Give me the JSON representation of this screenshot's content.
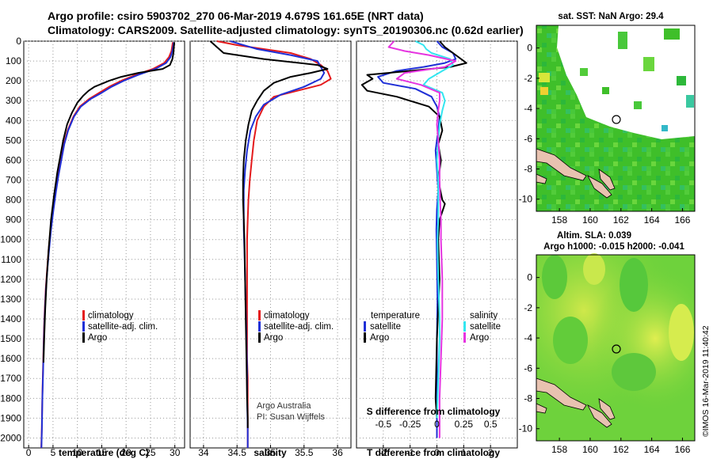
{
  "title": {
    "line1": "Argo profile: csiro 5903702_270 06-Mar-2019 4.679S 161.65E (NRT data)",
    "line2": "Climatology: CARS2009. Satellite-adjusted climatology: synTS_20190306.nc (0.62d earlier)"
  },
  "credit": {
    "line1": "Argo Australia",
    "line2": "PI: Susan Wijffels",
    "stamp": "©IMOS 16-Mar-2019 11:40:42"
  },
  "colors": {
    "climatology": "#e41a1c",
    "satellite": "#1f2fd6",
    "argo": "#000000",
    "sal_satellite": "#33e6f0",
    "sal_argo": "#e634e0"
  },
  "y_axis": {
    "label": "",
    "range": [
      0,
      2050
    ],
    "ticks": [
      0,
      100,
      200,
      300,
      400,
      500,
      600,
      700,
      800,
      900,
      1000,
      1100,
      1200,
      1300,
      1400,
      1500,
      1600,
      1700,
      1800,
      1900,
      2000
    ]
  },
  "chart_data": [
    {
      "type": "line",
      "id": "temperature",
      "xlabel": "temperature (deg C)",
      "xlim": [
        -1,
        32
      ],
      "xticks": [
        0,
        5,
        10,
        15,
        20,
        25,
        30
      ],
      "ylim": [
        2050,
        0
      ],
      "legend": [
        "climatology",
        "satellite-adj. clim.",
        "Argo"
      ],
      "series": [
        {
          "name": "climatology",
          "color": "#e41a1c",
          "x": [
            29.6,
            29.5,
            29.3,
            28.8,
            27.8,
            25.5,
            22,
            19,
            16.5,
            14.5,
            12.5,
            10.5,
            9.2,
            8,
            7.2,
            6.6,
            6,
            5.5,
            5,
            4.5,
            4.1,
            3.8,
            3.5,
            3.3,
            3.15,
            3.05,
            2.95,
            2.8,
            2.7,
            2.6
          ],
          "y": [
            5,
            20,
            50,
            80,
            110,
            140,
            170,
            200,
            230,
            260,
            290,
            330,
            380,
            450,
            520,
            600,
            680,
            760,
            850,
            950,
            1050,
            1150,
            1250,
            1350,
            1450,
            1550,
            1650,
            1800,
            1950,
            2050
          ]
        },
        {
          "name": "satellite-adj. clim.",
          "color": "#1f2fd6",
          "x": [
            29.8,
            29.7,
            29.5,
            29.1,
            28.2,
            26,
            22.5,
            19.5,
            17,
            15,
            12.8,
            10.7,
            9.3,
            8.1,
            7.3,
            6.7,
            6.1,
            5.6,
            5.1,
            4.6,
            4.2,
            3.85,
            3.55,
            3.35,
            3.2,
            3.08,
            2.98,
            2.82,
            2.72,
            2.62
          ],
          "y": [
            5,
            20,
            50,
            80,
            110,
            140,
            170,
            200,
            230,
            260,
            290,
            330,
            380,
            450,
            520,
            600,
            680,
            760,
            850,
            950,
            1050,
            1150,
            1250,
            1350,
            1450,
            1550,
            1650,
            1800,
            1950,
            2050
          ]
        },
        {
          "name": "Argo",
          "color": "#000000",
          "x": [
            29.9,
            29.8,
            29.7,
            29.5,
            29,
            27.5,
            25,
            22.5,
            19,
            16.5,
            15,
            13.5,
            12.3,
            11.2,
            10,
            8.9,
            7.9,
            7.1,
            6.5,
            5.9,
            5.2,
            4.6,
            4.1,
            3.7,
            3.4,
            3.2,
            3.05
          ],
          "y": [
            5,
            30,
            60,
            90,
            120,
            140,
            150,
            160,
            180,
            200,
            215,
            230,
            250,
            275,
            310,
            360,
            420,
            500,
            580,
            660,
            780,
            900,
            1050,
            1200,
            1350,
            1500,
            1620
          ]
        }
      ]
    },
    {
      "type": "line",
      "id": "salinity",
      "xlabel": "salinity",
      "xlim": [
        33.8,
        36.2
      ],
      "xticks": [
        34,
        34.5,
        35,
        35.5,
        36
      ],
      "ylim": [
        2050,
        0
      ],
      "legend": [
        "climatology",
        "satellite-adj. clim.",
        "Argo"
      ],
      "series": [
        {
          "name": "climatology",
          "color": "#e41a1c",
          "x": [
            34.2,
            34.5,
            34.9,
            35.3,
            35.6,
            35.75,
            35.85,
            35.9,
            35.75,
            35.4,
            35.05,
            34.9,
            34.8,
            34.75,
            34.72,
            34.69,
            34.67,
            34.66,
            34.65,
            34.65,
            34.65,
            34.65,
            34.65,
            34.66,
            34.66,
            34.66,
            34.66
          ],
          "y": [
            0,
            20,
            40,
            60,
            90,
            120,
            150,
            190,
            220,
            250,
            280,
            330,
            400,
            500,
            600,
            700,
            800,
            900,
            1000,
            1200,
            1400,
            1500,
            1600,
            1700,
            1800,
            1900,
            2050
          ]
        },
        {
          "name": "satellite-adj. clim.",
          "color": "#1f2fd6",
          "x": [
            34.4,
            34.55,
            34.8,
            35.3,
            35.7,
            35.75,
            35.8,
            35.75,
            35.5,
            35.15,
            34.9,
            34.78,
            34.7,
            34.65,
            34.62,
            34.6,
            34.6,
            34.6,
            34.61,
            34.62,
            34.63,
            34.64,
            34.65,
            34.65,
            34.66,
            34.66
          ],
          "y": [
            0,
            15,
            40,
            70,
            100,
            130,
            160,
            190,
            230,
            270,
            320,
            380,
            450,
            550,
            650,
            750,
            850,
            950,
            1050,
            1200,
            1350,
            1500,
            1650,
            1800,
            1950,
            2050
          ]
        },
        {
          "name": "Argo",
          "color": "#000000",
          "x": [
            34.1,
            34.2,
            34.3,
            34.9,
            35.7,
            35.85,
            35.6,
            35.3,
            35.05,
            34.9,
            34.8,
            34.72,
            34.67,
            34.63,
            34.6,
            34.59,
            34.59,
            34.6,
            34.61,
            34.62,
            34.63,
            34.64,
            34.65,
            34.66,
            34.66
          ],
          "y": [
            0,
            30,
            60,
            90,
            120,
            140,
            160,
            180,
            210,
            250,
            300,
            350,
            420,
            500,
            600,
            700,
            800,
            900,
            1000,
            1200,
            1400,
            1600,
            1800,
            1900,
            1950
          ]
        }
      ]
    },
    {
      "type": "line",
      "id": "difference",
      "xlabel": "T difference from climatology",
      "xlabel_top": "S difference from climatology",
      "xlim": [
        -3,
        3
      ],
      "xticks": [
        -2,
        -1,
        0,
        1,
        2
      ],
      "xticks_top": [
        "-0.5",
        "-0.25",
        "0",
        "0.25",
        "0.5"
      ],
      "ylim": [
        2050,
        0
      ],
      "legend_temperature": {
        "title": "temperature",
        "items": [
          "satellite",
          "Argo"
        ]
      },
      "legend_salinity": {
        "title": "salinity",
        "items": [
          "satellite",
          "Argo"
        ]
      },
      "series": [
        {
          "name": "satellite",
          "group": "temperature",
          "color": "#1f2fd6",
          "x": [
            0,
            0.2,
            0.6,
            0.7,
            0.3,
            -0.5,
            -1.5,
            -2.2,
            -2.0,
            -0.8,
            -0.2,
            0,
            0.1,
            0.05,
            -0.05,
            0,
            0.05,
            0,
            -0.02,
            0,
            0.02,
            0,
            0,
            0,
            0
          ],
          "y": [
            0,
            30,
            60,
            90,
            110,
            130,
            150,
            180,
            210,
            240,
            280,
            330,
            380,
            450,
            550,
            650,
            750,
            850,
            950,
            1100,
            1300,
            1500,
            1700,
            1850,
            2000
          ]
        },
        {
          "name": "Argo",
          "group": "temperature",
          "color": "#000000",
          "x": [
            0.1,
            0.3,
            0.6,
            1.1,
            0.5,
            -1.0,
            -2.6,
            -2.4,
            -2.8,
            -2.6,
            -1.5,
            -0.3,
            0.1,
            0.2,
            0.05,
            0.15,
            0.05,
            0.2,
            0.3,
            0.1,
            0.05,
            0.1,
            0,
            -0.05,
            0
          ],
          "y": [
            0,
            30,
            60,
            110,
            130,
            150,
            170,
            190,
            220,
            250,
            280,
            330,
            380,
            450,
            520,
            600,
            700,
            800,
            820,
            900,
            1000,
            1200,
            1500,
            1800,
            1900
          ]
        },
        {
          "name": "satellite",
          "group": "salinity",
          "color": "#33e6f0",
          "x": [
            -0.8,
            -0.5,
            -0.4,
            -0.2,
            0.5,
            0.6,
            0.2,
            -0.3,
            -0.5,
            0.2,
            0.3,
            0.2,
            0.1,
            0.05,
            0.0,
            0.05,
            0.05,
            0.05,
            0.02,
            0.05,
            0.1,
            0.1,
            0.05,
            0
          ],
          "y": [
            0,
            20,
            40,
            60,
            90,
            120,
            150,
            190,
            220,
            260,
            300,
            350,
            420,
            500,
            600,
            700,
            800,
            900,
            1000,
            1200,
            1400,
            1500,
            1700,
            1900
          ]
        },
        {
          "name": "Argo",
          "group": "salinity",
          "color": "#e634e0",
          "x": [
            -1.6,
            -1.8,
            -1.2,
            -0.3,
            0.7,
            0.3,
            -1.2,
            -1.5,
            -0.6,
            0.1,
            0.1,
            0.05,
            0,
            0.05,
            0.1,
            0.1,
            0.12,
            0.15,
            0.15,
            0.2,
            0.2,
            0.15,
            0.1,
            0.1
          ],
          "y": [
            0,
            30,
            50,
            70,
            100,
            130,
            160,
            190,
            220,
            260,
            300,
            350,
            420,
            500,
            600,
            700,
            800,
            900,
            1000,
            1200,
            1400,
            1600,
            1800,
            2000
          ]
        }
      ]
    },
    {
      "type": "heatmap",
      "id": "sst-map",
      "title": "sat. SST: NaN Argo: 29.4",
      "xlim": [
        156.5,
        166.8
      ],
      "ylim": [
        -10.8,
        1.5
      ],
      "xticks": [
        158,
        160,
        162,
        164,
        166
      ],
      "yticks": [
        0,
        -2,
        -4,
        -6,
        -8,
        -10
      ],
      "marker": {
        "lon": 161.65,
        "lat": -4.679
      }
    },
    {
      "type": "heatmap",
      "id": "sla-map",
      "title": "Altim. SLA: 0.039",
      "subtitle": "Argo h1000: -0.015 h2000: -0.041",
      "xlim": [
        156.5,
        166.8
      ],
      "ylim": [
        -10.8,
        1.5
      ],
      "xticks": [
        158,
        160,
        162,
        164,
        166
      ],
      "yticks": [
        0,
        -2,
        -4,
        -6,
        -8,
        -10
      ],
      "marker": {
        "lon": 161.65,
        "lat": -4.679
      }
    }
  ]
}
